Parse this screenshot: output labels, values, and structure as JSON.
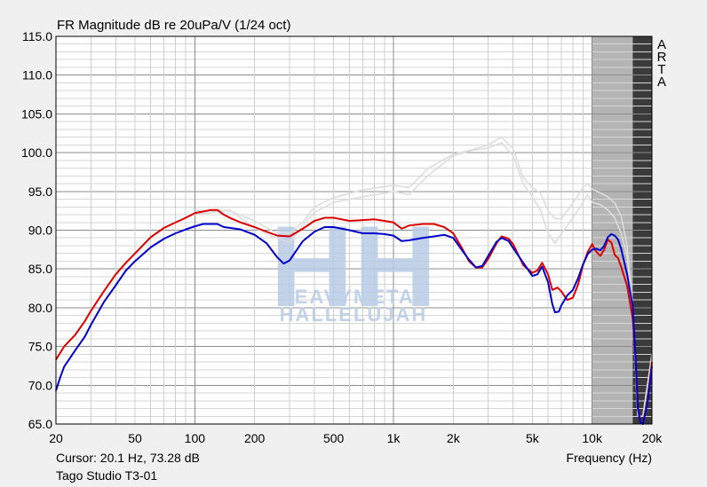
{
  "chart_data": {
    "type": "line",
    "title": "FR Magnitude dB re 20uPa/V (1/24 oct)",
    "xlabel": "Frequency (Hz)",
    "ylabel": "",
    "xscale": "log",
    "xlim": [
      20,
      20000
    ],
    "ylim": [
      65,
      115
    ],
    "grid": true,
    "x_ticks": [
      {
        "value": 20,
        "label": "20"
      },
      {
        "value": 50,
        "label": "50"
      },
      {
        "value": 100,
        "label": "100"
      },
      {
        "value": 200,
        "label": "200"
      },
      {
        "value": 500,
        "label": "500"
      },
      {
        "value": 1000,
        "label": "1k"
      },
      {
        "value": 2000,
        "label": "2k"
      },
      {
        "value": 5000,
        "label": "5k"
      },
      {
        "value": 10000,
        "label": "10k"
      },
      {
        "value": 20000,
        "label": "20k"
      }
    ],
    "y_ticks": [
      {
        "value": 115,
        "label": "115.0"
      },
      {
        "value": 110,
        "label": "110.0"
      },
      {
        "value": 105,
        "label": "105.0"
      },
      {
        "value": 100,
        "label": "100.0"
      },
      {
        "value": 95,
        "label": "95.0"
      },
      {
        "value": 90,
        "label": "90.0"
      },
      {
        "value": 85,
        "label": "85.0"
      },
      {
        "value": 80,
        "label": "80.0"
      },
      {
        "value": 75,
        "label": "75.0"
      },
      {
        "value": 70,
        "label": "70.0"
      },
      {
        "value": 65,
        "label": "65.0"
      }
    ],
    "shaded_bands": [
      {
        "from": 10000,
        "to": 16000,
        "color": "#b4b4b4"
      },
      {
        "from": 16000,
        "to": 20000,
        "color": "#3a3a3a"
      }
    ],
    "series": [
      {
        "color": "#dddddd",
        "points": [
          [
            100,
            92.5
          ],
          [
            150,
            92.5
          ],
          [
            200,
            91.2
          ],
          [
            250,
            89.8
          ],
          [
            300,
            89.6
          ],
          [
            350,
            91
          ],
          [
            400,
            93
          ],
          [
            500,
            94.2
          ],
          [
            700,
            95.2
          ],
          [
            1000,
            95.8
          ],
          [
            1200,
            95.5
          ],
          [
            1500,
            98
          ],
          [
            2000,
            99.8
          ],
          [
            2500,
            100.4
          ],
          [
            3000,
            101
          ],
          [
            3500,
            102
          ],
          [
            4000,
            100.5
          ],
          [
            4500,
            96.8
          ],
          [
            5000,
            95.5
          ],
          [
            5500,
            94.8
          ],
          [
            6000,
            92.5
          ],
          [
            6500,
            91.5
          ],
          [
            7000,
            91.5
          ],
          [
            7500,
            92.5
          ],
          [
            8000,
            93.5
          ],
          [
            9000,
            95.5
          ],
          [
            9500,
            96
          ],
          [
            10000,
            95.3
          ],
          [
            11000,
            94.8
          ],
          [
            12000,
            94.3
          ],
          [
            13000,
            93.5
          ],
          [
            14000,
            91.8
          ],
          [
            15000,
            88
          ],
          [
            16000,
            80
          ],
          [
            17000,
            66
          ],
          [
            18000,
            66
          ],
          [
            19000,
            70
          ],
          [
            20000,
            74
          ]
        ]
      },
      {
        "color": "#dddddd",
        "points": [
          [
            100,
            92
          ],
          [
            150,
            92.6
          ],
          [
            200,
            90.3
          ],
          [
            250,
            89.1
          ],
          [
            300,
            88.4
          ],
          [
            350,
            90.6
          ],
          [
            400,
            92.3
          ],
          [
            500,
            93.6
          ],
          [
            700,
            94.3
          ],
          [
            1000,
            95
          ],
          [
            1200,
            94.6
          ],
          [
            1500,
            97.1
          ],
          [
            2000,
            99.6
          ],
          [
            2500,
            100.3
          ],
          [
            3000,
            100.6
          ],
          [
            3500,
            101.3
          ],
          [
            4000,
            99.6
          ],
          [
            4500,
            96
          ],
          [
            5000,
            94.3
          ],
          [
            5500,
            92.6
          ],
          [
            6000,
            89.6
          ],
          [
            6500,
            88.3
          ],
          [
            7000,
            89.6
          ],
          [
            7500,
            90.6
          ],
          [
            8000,
            91.6
          ],
          [
            9000,
            93.6
          ],
          [
            9500,
            94.6
          ],
          [
            10000,
            93.6
          ],
          [
            11000,
            93.3
          ],
          [
            12000,
            92.6
          ],
          [
            13000,
            91.6
          ],
          [
            14000,
            89.6
          ],
          [
            15000,
            86.6
          ],
          [
            16000,
            80
          ],
          [
            17000,
            66
          ],
          [
            18000,
            66
          ],
          [
            19000,
            70
          ],
          [
            20000,
            74
          ]
        ]
      },
      {
        "color": "#dd0000",
        "points": [
          [
            20,
            73.3
          ],
          [
            22,
            75
          ],
          [
            25,
            76.5
          ],
          [
            28,
            78.3
          ],
          [
            30,
            79.6
          ],
          [
            35,
            82.2
          ],
          [
            40,
            84.3
          ],
          [
            45,
            85.8
          ],
          [
            50,
            87
          ],
          [
            60,
            89.1
          ],
          [
            70,
            90.3
          ],
          [
            80,
            91
          ],
          [
            90,
            91.6
          ],
          [
            100,
            92.2
          ],
          [
            110,
            92.4
          ],
          [
            120,
            92.6
          ],
          [
            130,
            92.6
          ],
          [
            140,
            92
          ],
          [
            150,
            91.6
          ],
          [
            170,
            91
          ],
          [
            200,
            90.4
          ],
          [
            230,
            89.8
          ],
          [
            260,
            89.3
          ],
          [
            300,
            89.2
          ],
          [
            350,
            90.2
          ],
          [
            400,
            91.2
          ],
          [
            450,
            91.6
          ],
          [
            500,
            91.6
          ],
          [
            600,
            91.2
          ],
          [
            700,
            91.3
          ],
          [
            800,
            91.4
          ],
          [
            900,
            91.2
          ],
          [
            1000,
            91
          ],
          [
            1100,
            90.2
          ],
          [
            1200,
            90.6
          ],
          [
            1400,
            90.8
          ],
          [
            1600,
            90.8
          ],
          [
            1800,
            90.4
          ],
          [
            2000,
            89.6
          ],
          [
            2200,
            87.8
          ],
          [
            2400,
            86
          ],
          [
            2600,
            85.2
          ],
          [
            2800,
            85.2
          ],
          [
            3000,
            86.3
          ],
          [
            3300,
            88.3
          ],
          [
            3500,
            89.2
          ],
          [
            3800,
            88.9
          ],
          [
            4000,
            88.2
          ],
          [
            4500,
            85.5
          ],
          [
            5000,
            84.5
          ],
          [
            5300,
            84.8
          ],
          [
            5600,
            85.8
          ],
          [
            6000,
            84.3
          ],
          [
            6300,
            82.3
          ],
          [
            6700,
            82.6
          ],
          [
            7000,
            82.1
          ],
          [
            7500,
            81
          ],
          [
            8000,
            81.3
          ],
          [
            8500,
            83
          ],
          [
            9000,
            85.5
          ],
          [
            9500,
            87.2
          ],
          [
            10000,
            88.2
          ],
          [
            10500,
            87.2
          ],
          [
            11000,
            86.7
          ],
          [
            11500,
            87.5
          ],
          [
            12000,
            88.8
          ],
          [
            12500,
            88.4
          ],
          [
            13000,
            86.8
          ],
          [
            13500,
            86.4
          ],
          [
            14000,
            85.3
          ],
          [
            15000,
            82.8
          ],
          [
            16000,
            78.6
          ],
          [
            16500,
            74
          ],
          [
            17000,
            67
          ],
          [
            17500,
            65.2
          ],
          [
            18000,
            65
          ],
          [
            19000,
            68
          ],
          [
            20000,
            73
          ]
        ]
      },
      {
        "color": "#0000cc",
        "points": [
          [
            20,
            69.3
          ],
          [
            21,
            71
          ],
          [
            22,
            72.4
          ],
          [
            25,
            74.5
          ],
          [
            28,
            76.3
          ],
          [
            30,
            77.8
          ],
          [
            35,
            80.8
          ],
          [
            40,
            82.9
          ],
          [
            45,
            84.8
          ],
          [
            50,
            86
          ],
          [
            60,
            87.8
          ],
          [
            70,
            88.9
          ],
          [
            80,
            89.6
          ],
          [
            90,
            90.1
          ],
          [
            100,
            90.5
          ],
          [
            110,
            90.8
          ],
          [
            120,
            90.8
          ],
          [
            130,
            90.8
          ],
          [
            140,
            90.4
          ],
          [
            150,
            90.3
          ],
          [
            170,
            90.1
          ],
          [
            200,
            89.4
          ],
          [
            230,
            88.3
          ],
          [
            260,
            86.5
          ],
          [
            280,
            85.7
          ],
          [
            300,
            86.1
          ],
          [
            350,
            88.6
          ],
          [
            400,
            89.8
          ],
          [
            450,
            90.4
          ],
          [
            500,
            90.4
          ],
          [
            600,
            90
          ],
          [
            700,
            89.6
          ],
          [
            800,
            89.6
          ],
          [
            900,
            89.5
          ],
          [
            1000,
            89.3
          ],
          [
            1100,
            88.6
          ],
          [
            1200,
            88.7
          ],
          [
            1400,
            89
          ],
          [
            1600,
            89.2
          ],
          [
            1800,
            89.4
          ],
          [
            2000,
            89
          ],
          [
            2200,
            87.5
          ],
          [
            2400,
            86.2
          ],
          [
            2600,
            85.2
          ],
          [
            2800,
            85.4
          ],
          [
            3000,
            86.7
          ],
          [
            3300,
            88.5
          ],
          [
            3500,
            89
          ],
          [
            3800,
            88.6
          ],
          [
            4000,
            87.7
          ],
          [
            4500,
            85.8
          ],
          [
            5000,
            84.1
          ],
          [
            5300,
            84.3
          ],
          [
            5600,
            85.3
          ],
          [
            6000,
            83.3
          ],
          [
            6300,
            80.5
          ],
          [
            6500,
            79.4
          ],
          [
            6800,
            79.5
          ],
          [
            7000,
            80.3
          ],
          [
            7500,
            81.6
          ],
          [
            8000,
            82.3
          ],
          [
            8500,
            83.8
          ],
          [
            9000,
            85.6
          ],
          [
            9500,
            86.9
          ],
          [
            10000,
            87.5
          ],
          [
            10500,
            87.6
          ],
          [
            11000,
            87.4
          ],
          [
            11500,
            88
          ],
          [
            12000,
            89.1
          ],
          [
            12500,
            89.5
          ],
          [
            13000,
            89.3
          ],
          [
            13500,
            88.8
          ],
          [
            14000,
            87.6
          ],
          [
            15000,
            84.3
          ],
          [
            16000,
            80.2
          ],
          [
            16500,
            74
          ],
          [
            17000,
            67
          ],
          [
            17500,
            65.2
          ],
          [
            18000,
            65
          ],
          [
            19000,
            67.8
          ],
          [
            20000,
            72.5
          ]
        ]
      }
    ]
  },
  "side_label": "ARTA",
  "watermark": {
    "big": "HH",
    "line1": "HEAVYMETAL",
    "line2": "HALLELUJAH"
  },
  "cursor_readout": "Cursor: 20.1 Hz, 73.28 dB",
  "device_name": "Tago Studio T3-01"
}
